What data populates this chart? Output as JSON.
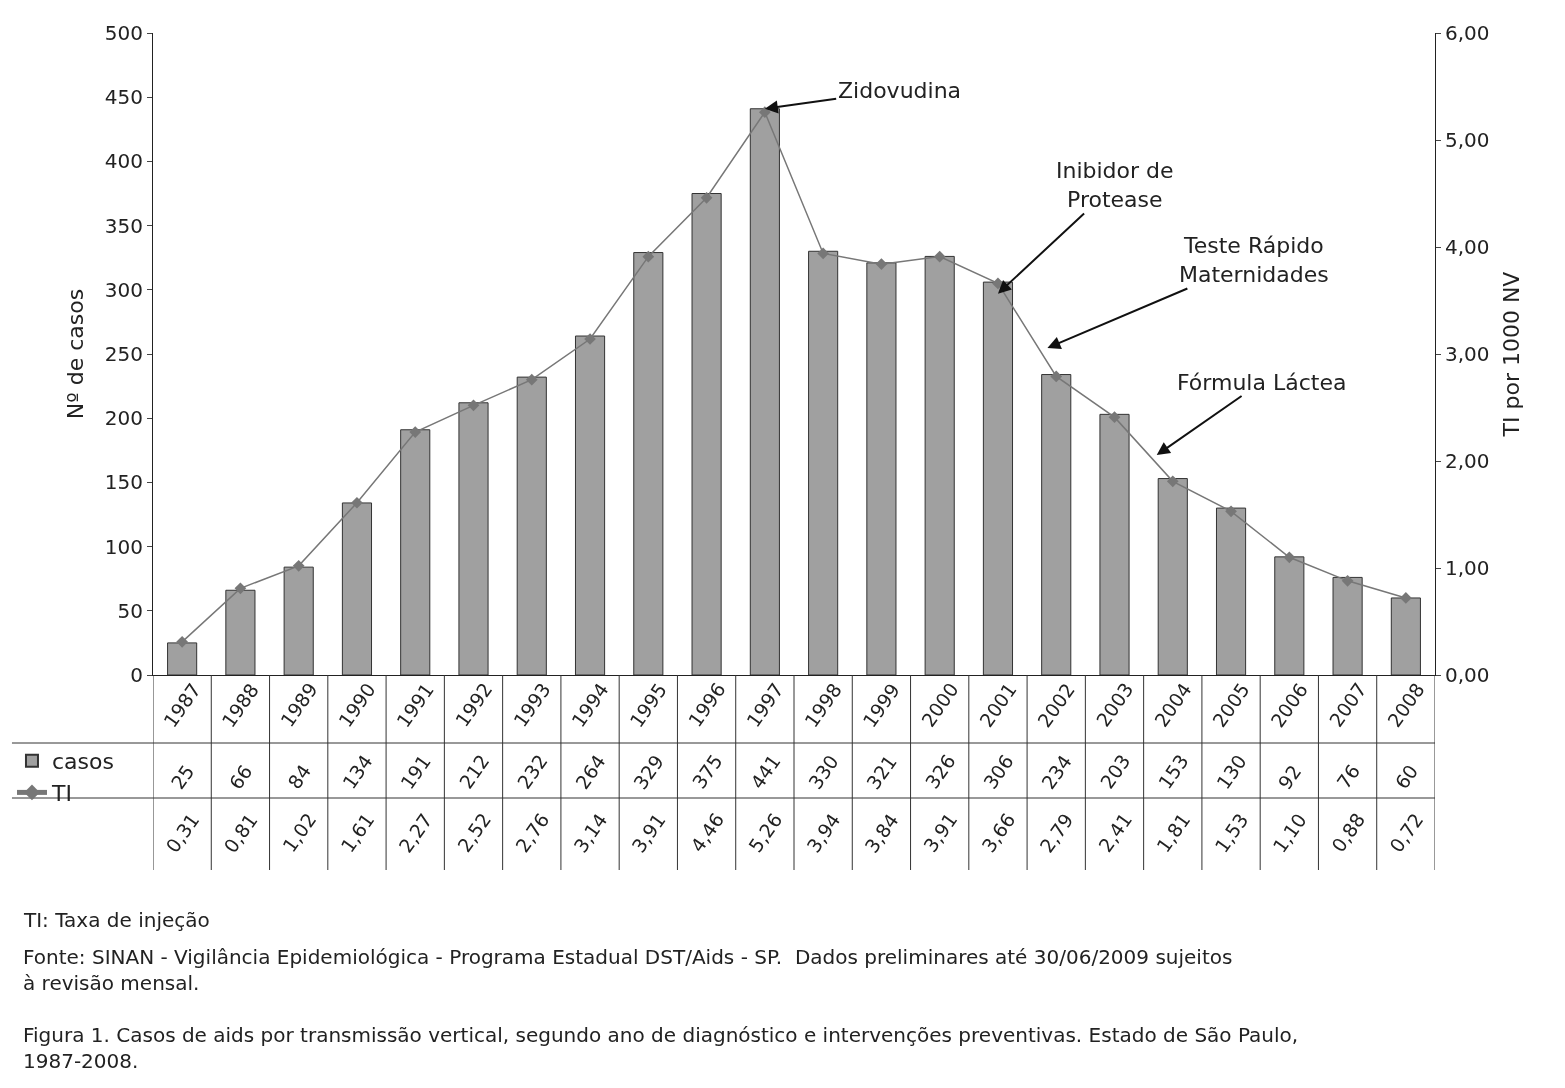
{
  "chart_data": {
    "type": "bar",
    "ylabel": "Nº de casos",
    "y2label": "TI por 1000 NV",
    "categories": [
      "1987",
      "1988",
      "1989",
      "1990",
      "1991",
      "1992",
      "1993",
      "1994",
      "1995",
      "1996",
      "1997",
      "1998",
      "1999",
      "2000",
      "2001",
      "2002",
      "2003",
      "2004",
      "2005",
      "2006",
      "2007",
      "2008"
    ],
    "series": [
      {
        "name": "casos",
        "color": "#a0a0a0",
        "values": [
          25,
          66,
          84,
          134,
          191,
          212,
          232,
          264,
          329,
          375,
          441,
          330,
          321,
          326,
          306,
          234,
          203,
          153,
          130,
          92,
          76,
          60
        ],
        "value_labels": [
          "25",
          "66",
          "84",
          "134",
          "191",
          "212",
          "232",
          "264",
          "329",
          "375",
          "441",
          "330",
          "321",
          "326",
          "306",
          "234",
          "203",
          "153",
          "130",
          "92",
          "76",
          "60"
        ]
      },
      {
        "name": "TI",
        "type": "line",
        "axis": "y2",
        "color": "#777777",
        "marker": "diamond",
        "values": [
          0.31,
          0.81,
          1.02,
          1.61,
          2.27,
          2.52,
          2.76,
          3.14,
          3.91,
          4.46,
          5.26,
          3.94,
          3.84,
          3.91,
          3.66,
          2.79,
          2.41,
          1.81,
          1.53,
          1.1,
          0.88,
          0.72
        ],
        "value_labels": [
          "0,31",
          "0,81",
          "1,02",
          "1,61",
          "2,27",
          "2,52",
          "2,76",
          "3,14",
          "3,91",
          "4,46",
          "5,26",
          "3,94",
          "3,84",
          "3,91",
          "3,66",
          "2,79",
          "2,41",
          "1,81",
          "1,53",
          "1,10",
          "0,88",
          "0,72"
        ]
      }
    ],
    "ylim": [
      0,
      500
    ],
    "yticks": [
      0,
      50,
      100,
      150,
      200,
      250,
      300,
      350,
      400,
      450,
      500
    ],
    "y2lim": [
      0,
      6
    ],
    "y2ticks": [
      {
        "value": 0,
        "label": "0,00"
      },
      {
        "value": 1,
        "label": "1,00"
      },
      {
        "value": 2,
        "label": "2,00"
      },
      {
        "value": 3,
        "label": "3,00"
      },
      {
        "value": 4,
        "label": "4,00"
      },
      {
        "value": 5,
        "label": "5,00"
      },
      {
        "value": 6,
        "label": "6,00"
      }
    ],
    "legend": "bottom left",
    "annotations": [
      {
        "text": "Zidovudina",
        "x": "1997",
        "y": 441
      },
      {
        "text": "Inibidor de\nProtease",
        "x": "2001",
        "y": 297
      },
      "Teste Rápido\nMaternidades",
      "Fórmula Láctea",
      "TI: Taxa de injeção",
      "Fonte: SINAN - Vigilância Epidemiológica - Programa Estadual DST/Aids - SP.  Dados preliminares até 30/06/2009 sujeitos\nà revisão mensal.",
      "Figura 1. Casos de aids por transmissão vertical, segundo ano de diagnóstico e intervenções preventivas. Estado de São Paulo,\n1987-2008."
    ]
  }
}
